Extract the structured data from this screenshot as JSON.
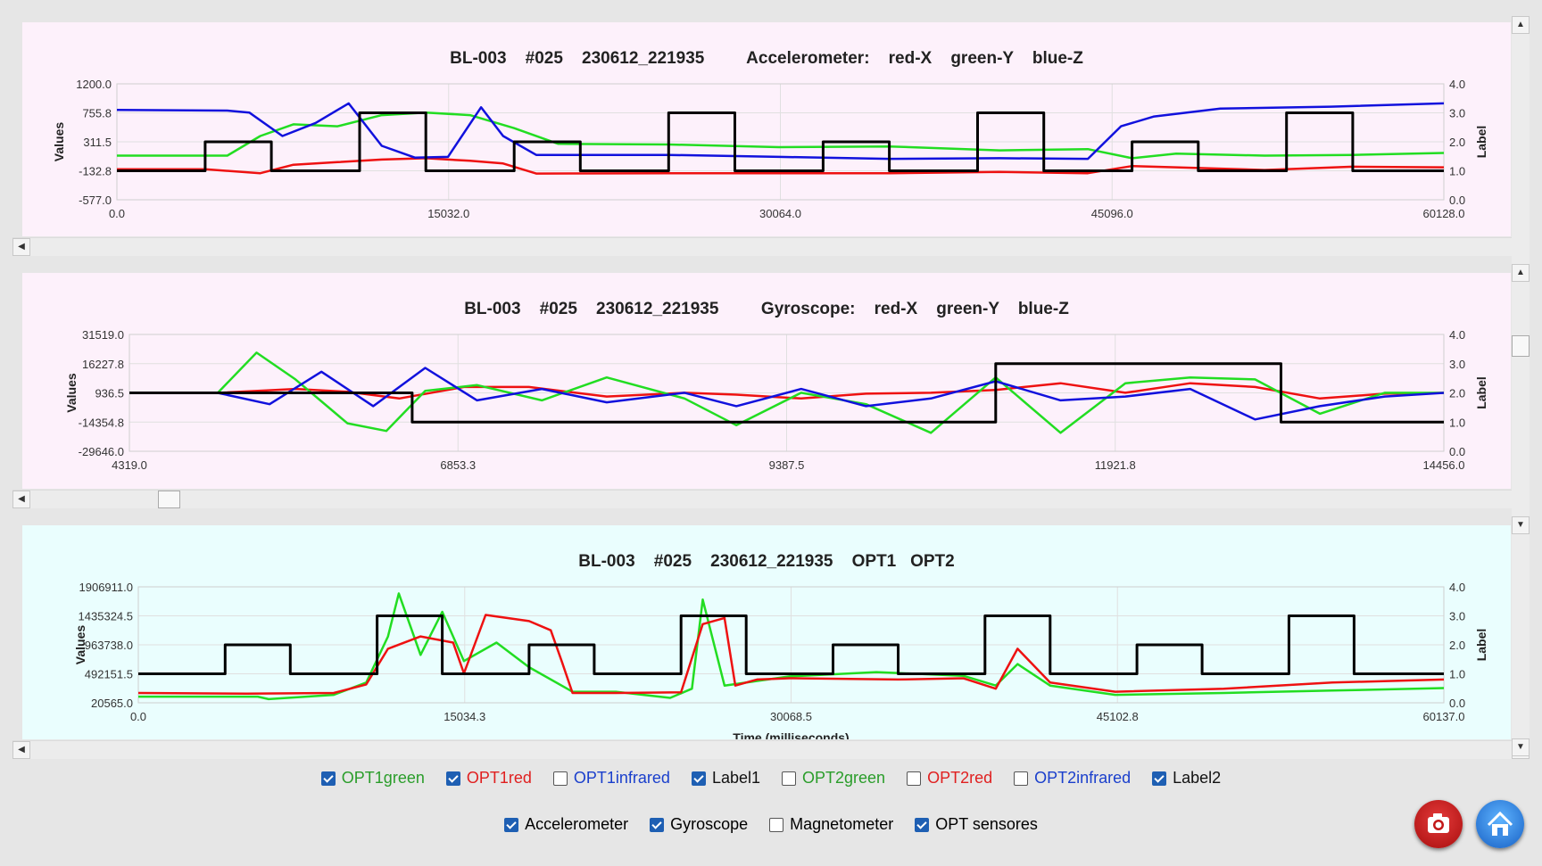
{
  "panels": [
    {
      "title": "BL-003    #025    230612_221935         Accelerometer:    red-X    green-Y    blue-Z",
      "ylabel": "Values",
      "y2label": "Label",
      "y_ticks": [
        "1200.0",
        "755.8",
        "311.5",
        "-132.8",
        "-577.0"
      ],
      "y2_ticks": [
        "4.0",
        "3.0",
        "2.0",
        "1.0",
        "0.0"
      ],
      "x_ticks": [
        "0.0",
        "15032.0",
        "30064.0",
        "45096.0",
        "60128.0"
      ],
      "xlabel": ""
    },
    {
      "title": "BL-003    #025    230612_221935         Gyroscope:    red-X    green-Y    blue-Z",
      "ylabel": "Values",
      "y2label": "Label",
      "y_ticks": [
        "31519.0",
        "16227.8",
        "936.5",
        "-14354.8",
        "-29646.0"
      ],
      "y2_ticks": [
        "4.0",
        "3.0",
        "2.0",
        "1.0",
        "0.0"
      ],
      "x_ticks": [
        "4319.0",
        "6853.3",
        "9387.5",
        "11921.8",
        "14456.0"
      ],
      "xlabel": ""
    },
    {
      "title": "BL-003    #025    230612_221935    OPT1   OPT2",
      "ylabel": "Values",
      "y2label": "Label",
      "y_ticks": [
        "1906911.0",
        "1435324.5",
        "963738.0",
        "492151.5",
        "20565.0"
      ],
      "y2_ticks": [
        "4.0",
        "3.0",
        "2.0",
        "1.0",
        "0.0"
      ],
      "x_ticks": [
        "0.0",
        "15034.3",
        "30068.5",
        "45102.8",
        "60137.0"
      ],
      "xlabel": "Time (milliseconds)"
    }
  ],
  "chart_data": [
    {
      "type": "line",
      "title": "BL-003 #025 230612_221935 Accelerometer: red-X green-Y blue-Z",
      "ylabel": "Values",
      "y2label": "Label",
      "xlim": [
        0,
        60128
      ],
      "ylim": [
        -577,
        1200
      ],
      "y2lim": [
        0,
        4
      ],
      "series": [
        {
          "name": "red-X",
          "color": "#ee1111",
          "axis": "left",
          "x": [
            0,
            4000,
            6500,
            8000,
            10000,
            12000,
            14000,
            16000,
            17500,
            19000,
            25000,
            30000,
            35000,
            40000,
            44000,
            46000,
            48000,
            52000,
            56000,
            60128
          ],
          "y": [
            -110,
            -110,
            -170,
            -40,
            0,
            40,
            60,
            20,
            -20,
            -175,
            -170,
            -170,
            -170,
            -150,
            -170,
            -60,
            -80,
            -120,
            -70,
            -80
          ]
        },
        {
          "name": "green-Y",
          "color": "#22dd22",
          "axis": "left",
          "x": [
            0,
            5000,
            6500,
            8000,
            10000,
            12000,
            14000,
            16000,
            18000,
            20000,
            25000,
            30000,
            35000,
            40000,
            44000,
            46000,
            48000,
            52000,
            56000,
            60128
          ],
          "y": [
            100,
            100,
            400,
            580,
            550,
            720,
            760,
            720,
            520,
            280,
            270,
            230,
            240,
            180,
            200,
            60,
            130,
            100,
            110,
            140
          ]
        },
        {
          "name": "blue-Z",
          "color": "#1111dd",
          "axis": "left",
          "x": [
            0,
            5000,
            6000,
            7500,
            9000,
            10500,
            12000,
            13500,
            15000,
            16500,
            17500,
            19000,
            25000,
            30000,
            35000,
            40000,
            44000,
            45500,
            47000,
            50000,
            55000,
            60128
          ],
          "y": [
            800,
            790,
            760,
            400,
            600,
            900,
            250,
            70,
            80,
            840,
            400,
            110,
            110,
            80,
            50,
            60,
            50,
            550,
            700,
            820,
            850,
            900
          ]
        },
        {
          "name": "",
          "color": "#000000",
          "axis": "right",
          "x": [
            0,
            4000,
            4000,
            7000,
            7000,
            11000,
            11000,
            14000,
            14000,
            18000,
            18000,
            21000,
            21000,
            25000,
            25000,
            28000,
            28000,
            32000,
            32000,
            35000,
            35000,
            39000,
            39000,
            42000,
            42000,
            46000,
            46000,
            49000,
            49000,
            53000,
            53000,
            56000,
            56000,
            60128
          ],
          "y": [
            1,
            1,
            2,
            2,
            1,
            1,
            3,
            3,
            1,
            1,
            2,
            2,
            1,
            1,
            3,
            3,
            1,
            1,
            2,
            2,
            1,
            1,
            3,
            3,
            1,
            1,
            2,
            2,
            1,
            1,
            3,
            3,
            1,
            1
          ]
        }
      ]
    },
    {
      "type": "line",
      "title": "BL-003 #025 230612_221935 Gyroscope: red-X green-Y blue-Z",
      "ylabel": "Values",
      "y2label": "Label",
      "xlim": [
        4319,
        14456
      ],
      "ylim": [
        -29646,
        31519
      ],
      "y2lim": [
        0,
        4
      ],
      "series": [
        {
          "name": "red-X",
          "color": "#ee1111",
          "axis": "left",
          "x": [
            4319,
            5000,
            5600,
            6000,
            6400,
            6900,
            7400,
            8000,
            8600,
            9000,
            9500,
            10000,
            10500,
            11000,
            11500,
            12000,
            12500,
            13000,
            13500,
            14000,
            14456
          ],
          "y": [
            936,
            936,
            3000,
            1500,
            -2000,
            4000,
            4000,
            -1000,
            1000,
            0,
            -2000,
            500,
            1000,
            2500,
            6000,
            1000,
            6000,
            4000,
            -2000,
            500,
            936
          ]
        },
        {
          "name": "green-Y",
          "color": "#22dd22",
          "axis": "left",
          "x": [
            4319,
            5000,
            5300,
            5600,
            6000,
            6300,
            6600,
            7000,
            7500,
            8000,
            8600,
            9000,
            9500,
            10000,
            10500,
            11000,
            11500,
            12000,
            12500,
            13000,
            13500,
            14000,
            14456
          ],
          "y": [
            936,
            936,
            22000,
            8000,
            -15000,
            -19000,
            2000,
            5000,
            -3000,
            9000,
            -2000,
            -16000,
            1000,
            -5000,
            -20000,
            9000,
            -20000,
            6000,
            9000,
            8000,
            -10000,
            1000,
            936
          ]
        },
        {
          "name": "blue-Z",
          "color": "#1111dd",
          "axis": "left",
          "x": [
            4319,
            5000,
            5400,
            5800,
            6200,
            6600,
            7000,
            7500,
            8000,
            8600,
            9000,
            9500,
            10000,
            10500,
            11000,
            11500,
            12000,
            12500,
            13000,
            13500,
            14000,
            14456
          ],
          "y": [
            936,
            936,
            -5000,
            12000,
            -6000,
            14000,
            -3000,
            3000,
            -4000,
            1000,
            -6000,
            3000,
            -6000,
            -2000,
            7000,
            -3000,
            -1000,
            3000,
            -13000,
            -6000,
            -1000,
            936
          ]
        },
        {
          "name": "",
          "color": "#000000",
          "axis": "right",
          "x": [
            4319,
            6500,
            6500,
            11000,
            11000,
            13200,
            13200,
            14456
          ],
          "y": [
            2,
            2,
            1,
            1,
            3,
            3,
            1,
            1
          ]
        }
      ]
    },
    {
      "type": "line",
      "title": "BL-003 #025 230612_221935 OPT1 OPT2",
      "xlabel": "Time (milliseconds)",
      "ylabel": "Values",
      "y2label": "Label",
      "xlim": [
        0,
        60137
      ],
      "ylim": [
        20565,
        1906911
      ],
      "y2lim": [
        0,
        4
      ],
      "series": [
        {
          "name": "OPT1green",
          "color": "#22dd22",
          "axis": "left",
          "x": [
            0,
            5500,
            6000,
            9000,
            10500,
            11500,
            12000,
            13000,
            14000,
            15000,
            16500,
            18000,
            20000,
            22000,
            24500,
            25500,
            26000,
            27000,
            30000,
            34000,
            38000,
            39500,
            40500,
            42000,
            45000,
            50000,
            55000,
            60137
          ],
          "y": [
            120000,
            120000,
            80000,
            150000,
            350000,
            1100000,
            1800000,
            800000,
            1500000,
            700000,
            1000000,
            600000,
            200000,
            200000,
            100000,
            250000,
            1700000,
            300000,
            450000,
            520000,
            460000,
            300000,
            650000,
            300000,
            150000,
            180000,
            220000,
            260000
          ]
        },
        {
          "name": "OPT1red",
          "color": "#ee1111",
          "axis": "left",
          "x": [
            0,
            5000,
            9000,
            10500,
            11500,
            13000,
            14500,
            15000,
            16000,
            18000,
            19000,
            19500,
            20000,
            22000,
            25000,
            26000,
            27000,
            27500,
            28500,
            30000,
            35000,
            38000,
            39500,
            40500,
            42000,
            45000,
            50000,
            55000,
            60137
          ],
          "y": [
            180000,
            170000,
            180000,
            320000,
            900000,
            1100000,
            1000000,
            500000,
            1450000,
            1350000,
            1200000,
            700000,
            180000,
            180000,
            190000,
            1300000,
            1400000,
            300000,
            400000,
            420000,
            400000,
            420000,
            250000,
            900000,
            350000,
            200000,
            250000,
            350000,
            400000
          ]
        },
        {
          "name": "Label1",
          "color": "#000000",
          "axis": "right",
          "x": [
            0,
            4000,
            4000,
            7000,
            7000,
            11000,
            11000,
            14000,
            14000,
            18000,
            18000,
            21000,
            21000,
            25000,
            25000,
            28000,
            28000,
            32000,
            32000,
            35000,
            35000,
            39000,
            39000,
            42000,
            42000,
            46000,
            46000,
            49000,
            49000,
            53000,
            53000,
            56000,
            56000,
            60137
          ],
          "y": [
            1,
            1,
            2,
            2,
            1,
            1,
            3,
            3,
            1,
            1,
            2,
            2,
            1,
            1,
            3,
            3,
            1,
            1,
            2,
            2,
            1,
            1,
            3,
            3,
            1,
            1,
            2,
            2,
            1,
            1,
            3,
            3,
            1,
            1
          ]
        }
      ]
    }
  ],
  "option_checks": [
    {
      "label": "OPT1green",
      "checked": true,
      "color": "#2a9d2a"
    },
    {
      "label": "OPT1red",
      "checked": true,
      "color": "#e02020"
    },
    {
      "label": "OPT1infrared",
      "checked": false,
      "color": "#1a3fcc"
    },
    {
      "label": "Label1",
      "checked": true,
      "color": "#111111"
    },
    {
      "label": "OPT2green",
      "checked": false,
      "color": "#2a9d2a"
    },
    {
      "label": "OPT2red",
      "checked": false,
      "color": "#e02020"
    },
    {
      "label": "OPT2infrared",
      "checked": false,
      "color": "#1a3fcc"
    },
    {
      "label": "Label2",
      "checked": true,
      "color": "#111111"
    }
  ],
  "sensor_checks": [
    {
      "label": "Accelerometer",
      "checked": true
    },
    {
      "label": "Gyroscope",
      "checked": true
    },
    {
      "label": "Magnetometer",
      "checked": false
    },
    {
      "label": "OPT sensores",
      "checked": true
    }
  ],
  "buttons": {
    "camera_icon": "camera-icon",
    "home_icon": "home-icon"
  }
}
